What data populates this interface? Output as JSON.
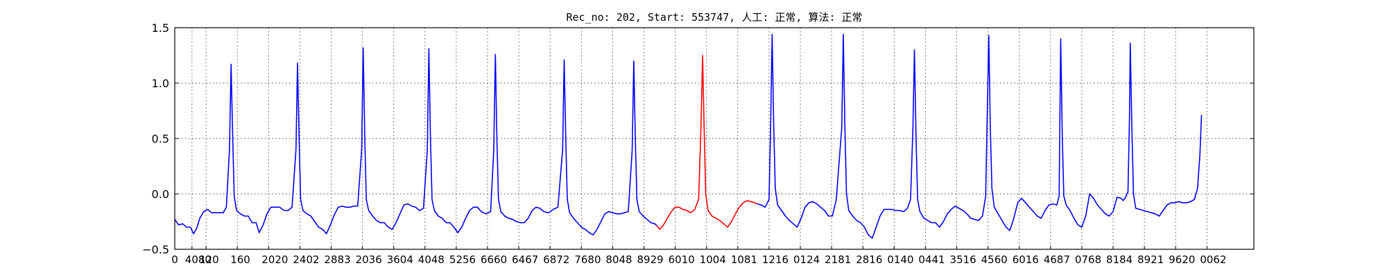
{
  "chart_data": {
    "type": "line",
    "title": "Rec_no: 202, Start: 553747, 人工: 正常, 算法: 正常",
    "xlabel": "",
    "ylabel": "",
    "xlim": [
      0,
      1380
    ],
    "ylim": [
      -0.5,
      1.5
    ],
    "yticks": [
      1.5,
      1.0,
      0.5,
      0.0,
      -0.5
    ],
    "ytick_labels": [
      "1.5",
      "1.0",
      "0.5",
      "0.0",
      "−0.5"
    ],
    "xticks": [
      0,
      22,
      40,
      80,
      120,
      160,
      200,
      240,
      280,
      320,
      360,
      400,
      440,
      480,
      520,
      560,
      600,
      640,
      680,
      720,
      760,
      800,
      840,
      880,
      920,
      960,
      1000,
      1040,
      1080,
      1120,
      1160,
      1200,
      1240,
      1280,
      1320
    ],
    "xtick_labels": [
      "0",
      "4080",
      "120",
      "160",
      "2020",
      "2402",
      "2883",
      "2036",
      "3604",
      "4048",
      "5256",
      "6660",
      "6467",
      "6872",
      "7680",
      "8048",
      "8929",
      "6010",
      "1004",
      "1081",
      "1216",
      "0124",
      "2181",
      "2816",
      "0140",
      "0441",
      "3516",
      "4560",
      "6016",
      "4687",
      "0768",
      "8184",
      "8921",
      "9620",
      "0062"
    ],
    "grid": true,
    "beat_times": [
      72,
      157,
      241,
      325,
      410,
      498,
      587,
      675,
      764,
      855,
      946,
      1041,
      1133,
      1222,
      1313
    ],
    "highlight_range": [
      617,
      745
    ],
    "series": [
      {
        "color": "#0000ff",
        "points": [
          [
            0,
            -0.23
          ],
          [
            5,
            -0.28
          ],
          [
            10,
            -0.27
          ],
          [
            15,
            -0.3
          ],
          [
            20,
            -0.3
          ],
          [
            24,
            -0.36
          ],
          [
            28,
            -0.31
          ],
          [
            32,
            -0.22
          ],
          [
            37,
            -0.16
          ],
          [
            42,
            -0.14
          ],
          [
            47,
            -0.17
          ],
          [
            52,
            -0.17
          ],
          [
            58,
            -0.17
          ],
          [
            62,
            -0.17
          ],
          [
            66,
            -0.12
          ],
          [
            70,
            0.4
          ],
          [
            72,
            1.17
          ],
          [
            74,
            0.55
          ],
          [
            76,
            -0.02
          ],
          [
            79,
            -0.15
          ],
          [
            84,
            -0.18
          ],
          [
            89,
            -0.2
          ],
          [
            94,
            -0.2
          ],
          [
            99,
            -0.26
          ],
          [
            104,
            -0.26
          ],
          [
            108,
            -0.35
          ],
          [
            113,
            -0.28
          ],
          [
            118,
            -0.18
          ],
          [
            123,
            -0.12
          ],
          [
            128,
            -0.12
          ],
          [
            134,
            -0.12
          ],
          [
            140,
            -0.15
          ],
          [
            145,
            -0.15
          ],
          [
            150,
            -0.12
          ],
          [
            155,
            0.4
          ],
          [
            157,
            1.18
          ],
          [
            159,
            0.5
          ],
          [
            161,
            -0.05
          ],
          [
            164,
            -0.15
          ],
          [
            169,
            -0.18
          ],
          [
            174,
            -0.2
          ],
          [
            179,
            -0.25
          ],
          [
            184,
            -0.3
          ],
          [
            189,
            -0.32
          ],
          [
            194,
            -0.36
          ],
          [
            199,
            -0.28
          ],
          [
            204,
            -0.19
          ],
          [
            209,
            -0.12
          ],
          [
            214,
            -0.11
          ],
          [
            219,
            -0.12
          ],
          [
            224,
            -0.12
          ],
          [
            229,
            -0.11
          ],
          [
            234,
            -0.11
          ],
          [
            239,
            0.4
          ],
          [
            241,
            1.32
          ],
          [
            243,
            0.5
          ],
          [
            245,
            -0.05
          ],
          [
            248,
            -0.15
          ],
          [
            253,
            -0.2
          ],
          [
            258,
            -0.24
          ],
          [
            263,
            -0.26
          ],
          [
            268,
            -0.26
          ],
          [
            273,
            -0.3
          ],
          [
            278,
            -0.32
          ],
          [
            283,
            -0.26
          ],
          [
            288,
            -0.18
          ],
          [
            293,
            -0.1
          ],
          [
            298,
            -0.09
          ],
          [
            303,
            -0.11
          ],
          [
            308,
            -0.12
          ],
          [
            313,
            -0.15
          ],
          [
            318,
            -0.13
          ],
          [
            323,
            0.4
          ],
          [
            325,
            1.31
          ],
          [
            327,
            0.5
          ],
          [
            329,
            -0.05
          ],
          [
            332,
            -0.15
          ],
          [
            337,
            -0.2
          ],
          [
            342,
            -0.22
          ],
          [
            347,
            -0.26
          ],
          [
            352,
            -0.26
          ],
          [
            357,
            -0.3
          ],
          [
            362,
            -0.35
          ],
          [
            367,
            -0.3
          ],
          [
            372,
            -0.22
          ],
          [
            377,
            -0.15
          ],
          [
            382,
            -0.12
          ],
          [
            387,
            -0.12
          ],
          [
            392,
            -0.16
          ],
          [
            398,
            -0.18
          ],
          [
            404,
            -0.16
          ],
          [
            408,
            0.4
          ],
          [
            410,
            1.26
          ],
          [
            412,
            0.5
          ],
          [
            414,
            -0.05
          ],
          [
            417,
            -0.16
          ],
          [
            422,
            -0.2
          ],
          [
            427,
            -0.22
          ],
          [
            432,
            -0.23
          ],
          [
            437,
            -0.25
          ],
          [
            442,
            -0.26
          ],
          [
            447,
            -0.26
          ],
          [
            452,
            -0.22
          ],
          [
            457,
            -0.15
          ],
          [
            462,
            -0.12
          ],
          [
            467,
            -0.13
          ],
          [
            472,
            -0.16
          ],
          [
            478,
            -0.17
          ],
          [
            484,
            -0.14
          ],
          [
            490,
            -0.12
          ],
          [
            496,
            0.4
          ],
          [
            498,
            1.21
          ],
          [
            500,
            0.5
          ],
          [
            502,
            -0.05
          ],
          [
            505,
            -0.17
          ],
          [
            510,
            -0.22
          ],
          [
            515,
            -0.26
          ],
          [
            520,
            -0.3
          ],
          [
            525,
            -0.32
          ],
          [
            530,
            -0.35
          ],
          [
            535,
            -0.37
          ],
          [
            540,
            -0.32
          ],
          [
            545,
            -0.25
          ],
          [
            550,
            -0.18
          ],
          [
            555,
            -0.16
          ],
          [
            560,
            -0.17
          ],
          [
            565,
            -0.18
          ],
          [
            570,
            -0.18
          ],
          [
            575,
            -0.17
          ],
          [
            580,
            -0.16
          ],
          [
            585,
            0.4
          ],
          [
            587,
            1.2
          ],
          [
            589,
            0.5
          ],
          [
            591,
            -0.05
          ],
          [
            594,
            -0.16
          ],
          [
            599,
            -0.2
          ],
          [
            604,
            -0.23
          ],
          [
            609,
            -0.26
          ],
          [
            614,
            -0.27
          ],
          [
            617,
            -0.29
          ]
        ]
      },
      {
        "color": "#ff0000",
        "points": [
          [
            617,
            -0.29
          ],
          [
            620,
            -0.32
          ],
          [
            625,
            -0.28
          ],
          [
            630,
            -0.22
          ],
          [
            635,
            -0.16
          ],
          [
            640,
            -0.12
          ],
          [
            645,
            -0.12
          ],
          [
            650,
            -0.14
          ],
          [
            655,
            -0.15
          ],
          [
            660,
            -0.17
          ],
          [
            665,
            -0.14
          ],
          [
            670,
            -0.05
          ],
          [
            673,
            0.6
          ],
          [
            675,
            1.25
          ],
          [
            677,
            0.6
          ],
          [
            679,
            0.0
          ],
          [
            682,
            -0.15
          ],
          [
            687,
            -0.2
          ],
          [
            692,
            -0.22
          ],
          [
            697,
            -0.24
          ],
          [
            702,
            -0.27
          ],
          [
            707,
            -0.3
          ],
          [
            712,
            -0.25
          ],
          [
            717,
            -0.18
          ],
          [
            722,
            -0.12
          ],
          [
            727,
            -0.08
          ],
          [
            732,
            -0.06
          ],
          [
            737,
            -0.07
          ],
          [
            742,
            -0.08
          ],
          [
            745,
            -0.09
          ]
        ]
      },
      {
        "color": "#0000ff",
        "points": [
          [
            745,
            -0.09
          ],
          [
            750,
            -0.1
          ],
          [
            755,
            -0.12
          ],
          [
            760,
            -0.05
          ],
          [
            762,
            0.6
          ],
          [
            764,
            1.44
          ],
          [
            766,
            0.6
          ],
          [
            768,
            0.05
          ],
          [
            771,
            -0.1
          ],
          [
            776,
            -0.15
          ],
          [
            781,
            -0.2
          ],
          [
            786,
            -0.24
          ],
          [
            791,
            -0.27
          ],
          [
            796,
            -0.3
          ],
          [
            801,
            -0.22
          ],
          [
            806,
            -0.12
          ],
          [
            811,
            -0.08
          ],
          [
            816,
            -0.07
          ],
          [
            821,
            -0.09
          ],
          [
            826,
            -0.12
          ],
          [
            831,
            -0.15
          ],
          [
            836,
            -0.2
          ],
          [
            841,
            -0.2
          ],
          [
            846,
            -0.05
          ],
          [
            853,
            0.6
          ],
          [
            855,
            1.44
          ],
          [
            857,
            0.6
          ],
          [
            859,
            0.0
          ],
          [
            862,
            -0.15
          ],
          [
            867,
            -0.2
          ],
          [
            872,
            -0.24
          ],
          [
            877,
            -0.26
          ],
          [
            882,
            -0.3
          ],
          [
            887,
            -0.37
          ],
          [
            892,
            -0.4
          ],
          [
            897,
            -0.3
          ],
          [
            902,
            -0.2
          ],
          [
            907,
            -0.14
          ],
          [
            912,
            -0.14
          ],
          [
            917,
            -0.14
          ],
          [
            922,
            -0.15
          ],
          [
            927,
            -0.15
          ],
          [
            932,
            -0.16
          ],
          [
            937,
            -0.13
          ],
          [
            941,
            -0.05
          ],
          [
            944,
            0.6
          ],
          [
            946,
            1.3
          ],
          [
            948,
            0.5
          ],
          [
            950,
            -0.05
          ],
          [
            953,
            -0.16
          ],
          [
            958,
            -0.22
          ],
          [
            963,
            -0.24
          ],
          [
            968,
            -0.26
          ],
          [
            973,
            -0.26
          ],
          [
            978,
            -0.3
          ],
          [
            983,
            -0.25
          ],
          [
            988,
            -0.18
          ],
          [
            993,
            -0.14
          ],
          [
            998,
            -0.11
          ],
          [
            1003,
            -0.13
          ],
          [
            1008,
            -0.15
          ],
          [
            1013,
            -0.18
          ],
          [
            1018,
            -0.22
          ],
          [
            1023,
            -0.23
          ],
          [
            1028,
            -0.24
          ],
          [
            1033,
            -0.2
          ],
          [
            1037,
            -0.02
          ],
          [
            1039,
            0.7
          ],
          [
            1041,
            1.43
          ],
          [
            1043,
            0.6
          ],
          [
            1045,
            0.05
          ],
          [
            1048,
            -0.12
          ],
          [
            1053,
            -0.18
          ],
          [
            1058,
            -0.24
          ],
          [
            1063,
            -0.3
          ],
          [
            1068,
            -0.33
          ],
          [
            1073,
            -0.22
          ],
          [
            1078,
            -0.08
          ],
          [
            1083,
            -0.04
          ],
          [
            1088,
            -0.08
          ],
          [
            1093,
            -0.12
          ],
          [
            1098,
            -0.16
          ],
          [
            1103,
            -0.2
          ],
          [
            1108,
            -0.22
          ],
          [
            1113,
            -0.15
          ],
          [
            1118,
            -0.1
          ],
          [
            1123,
            -0.09
          ],
          [
            1128,
            -0.1
          ],
          [
            1131,
            -0.02
          ],
          [
            1133,
            1.4
          ],
          [
            1135,
            0.5
          ],
          [
            1137,
            -0.02
          ],
          [
            1140,
            -0.1
          ],
          [
            1145,
            -0.15
          ],
          [
            1150,
            -0.22
          ],
          [
            1155,
            -0.28
          ],
          [
            1160,
            -0.3
          ],
          [
            1165,
            -0.2
          ],
          [
            1170,
            0.0
          ],
          [
            1175,
            -0.04
          ],
          [
            1180,
            -0.1
          ],
          [
            1185,
            -0.14
          ],
          [
            1190,
            -0.18
          ],
          [
            1195,
            -0.2
          ],
          [
            1200,
            -0.16
          ],
          [
            1205,
            -0.03
          ],
          [
            1210,
            -0.04
          ],
          [
            1213,
            -0.06
          ],
          [
            1216,
            -0.03
          ],
          [
            1219,
            0.02
          ],
          [
            1221,
            0.7
          ],
          [
            1222,
            1.36
          ],
          [
            1224,
            0.6
          ],
          [
            1226,
            0.0
          ],
          [
            1229,
            -0.13
          ],
          [
            1234,
            -0.14
          ],
          [
            1239,
            -0.15
          ],
          [
            1244,
            -0.16
          ],
          [
            1249,
            -0.17
          ],
          [
            1254,
            -0.18
          ],
          [
            1259,
            -0.2
          ],
          [
            1264,
            -0.15
          ],
          [
            1269,
            -0.1
          ],
          [
            1274,
            -0.08
          ],
          [
            1279,
            -0.08
          ],
          [
            1284,
            -0.07
          ],
          [
            1289,
            -0.08
          ],
          [
            1294,
            -0.08
          ],
          [
            1299,
            -0.07
          ],
          [
            1304,
            -0.05
          ],
          [
            1308,
            0.05
          ],
          [
            1311,
            0.35
          ],
          [
            1313,
            0.71
          ]
        ]
      }
    ]
  }
}
